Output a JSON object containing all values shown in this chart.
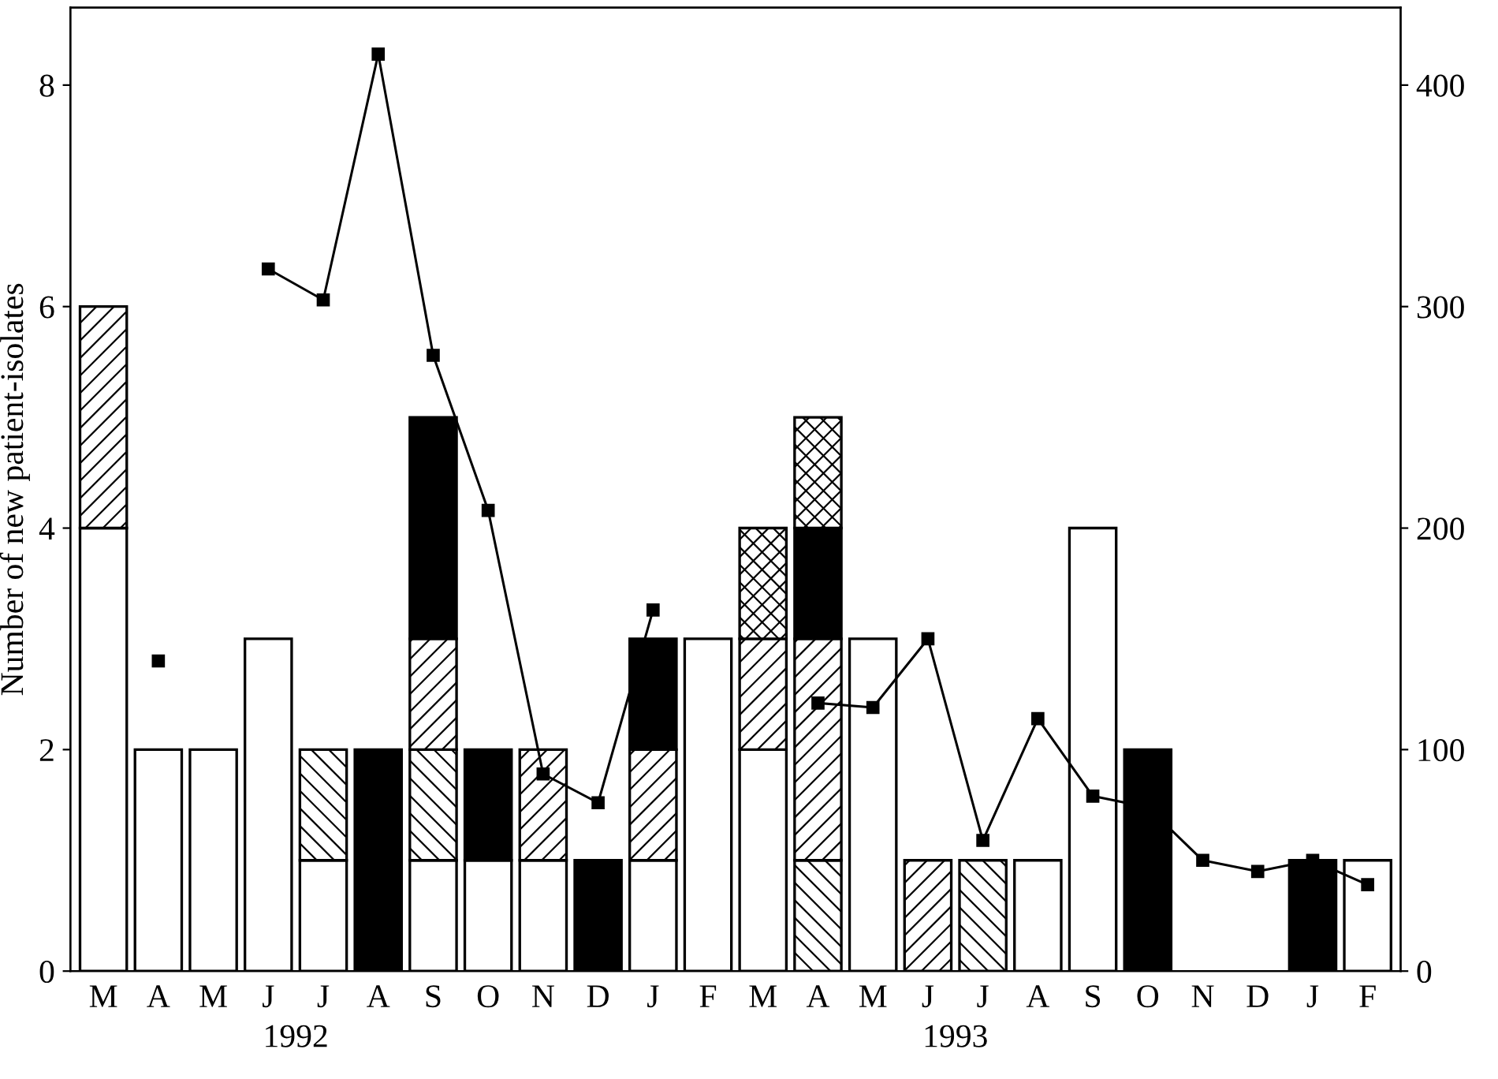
{
  "chart_data": {
    "type": "bar",
    "stacked": true,
    "ylabel": "Number of new patient-isolates",
    "categories": [
      "M",
      "A",
      "M",
      "J",
      "J",
      "A",
      "S",
      "O",
      "N",
      "D",
      "J",
      "F",
      "M",
      "A",
      "M",
      "J",
      "J",
      "A",
      "S",
      "O",
      "N",
      "D",
      "J",
      "F"
    ],
    "series": [
      {
        "color": "#ffffff",
        "values": [
          4,
          2,
          2,
          3,
          1,
          0,
          1,
          1,
          1,
          0,
          1,
          3,
          2,
          0,
          3,
          0,
          0,
          1,
          4,
          0,
          0,
          0,
          0,
          1
        ]
      },
      {
        "color": "#ffffff",
        "values": [
          0,
          0,
          0,
          0,
          1,
          0,
          1,
          0,
          0,
          0,
          0,
          0,
          0,
          1,
          0,
          0,
          1,
          0,
          0,
          0,
          0,
          0,
          0,
          0
        ]
      },
      {
        "color": "#ffffff",
        "values": [
          2,
          0,
          0,
          0,
          0,
          0,
          1,
          0,
          1,
          0,
          1,
          0,
          1,
          2,
          0,
          1,
          0,
          0,
          0,
          0,
          0,
          0,
          0,
          0
        ]
      },
      {
        "color": "#000000",
        "values": [
          0,
          0,
          0,
          0,
          0,
          2,
          2,
          1,
          0,
          1,
          1,
          0,
          0,
          1,
          0,
          0,
          0,
          0,
          0,
          2,
          0,
          0,
          1,
          0
        ]
      },
      {
        "color": "#ffffff",
        "values": [
          0,
          0,
          0,
          0,
          0,
          0,
          0,
          0,
          0,
          0,
          0,
          0,
          1,
          1,
          0,
          0,
          0,
          0,
          0,
          0,
          0,
          0,
          0,
          0
        ]
      },
      {
        "type": "line",
        "axis": "y2",
        "color": "#000000",
        "marker": "square",
        "values": [
          null,
          140,
          null,
          317,
          303,
          414,
          278,
          208,
          89,
          76,
          163,
          null,
          null,
          121,
          119,
          150,
          59,
          114,
          79,
          74,
          50,
          45,
          50,
          39
        ]
      }
    ],
    "ylim": [
      0,
      8.7
    ],
    "yticks": [
      0,
      2,
      4,
      6,
      8
    ],
    "y2lim": [
      0,
      435
    ],
    "y2ticks": [
      0,
      100,
      200,
      300,
      400
    ],
    "annotations": [
      "1992",
      "1993"
    ],
    "grid": false,
    "legend": false
  }
}
